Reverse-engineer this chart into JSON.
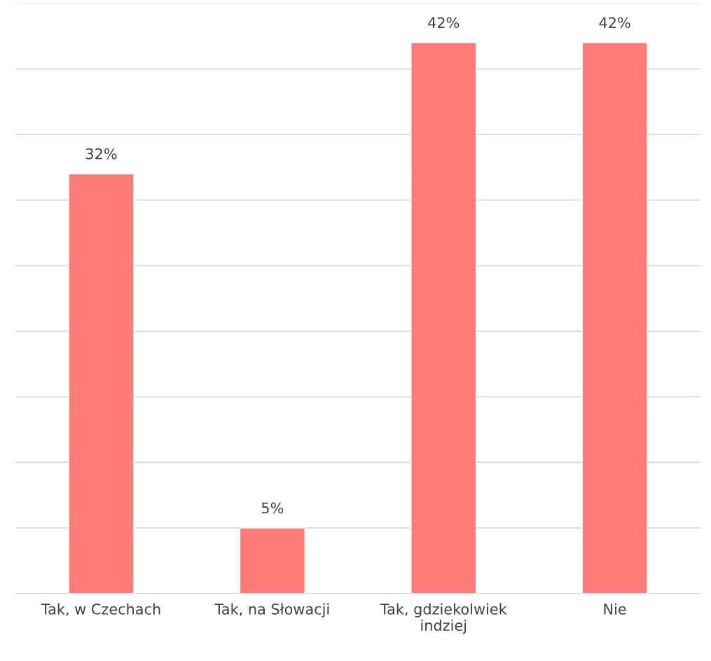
{
  "chart_data": {
    "type": "bar",
    "categories": [
      "Tak, w Czechach",
      "Tak, na Słowacji",
      "Tak, gdziekolwiek\nindziej",
      "Nie"
    ],
    "values": [
      32,
      5,
      42,
      42
    ],
    "value_labels": [
      "32%",
      "5%",
      "42%",
      "42%"
    ],
    "color": "#ff7c78",
    "ylim": [
      0,
      45
    ],
    "yticks": [
      0,
      5,
      10,
      15,
      20,
      25,
      30,
      35,
      40,
      45
    ],
    "grid": "y",
    "tick_labels": "x"
  }
}
